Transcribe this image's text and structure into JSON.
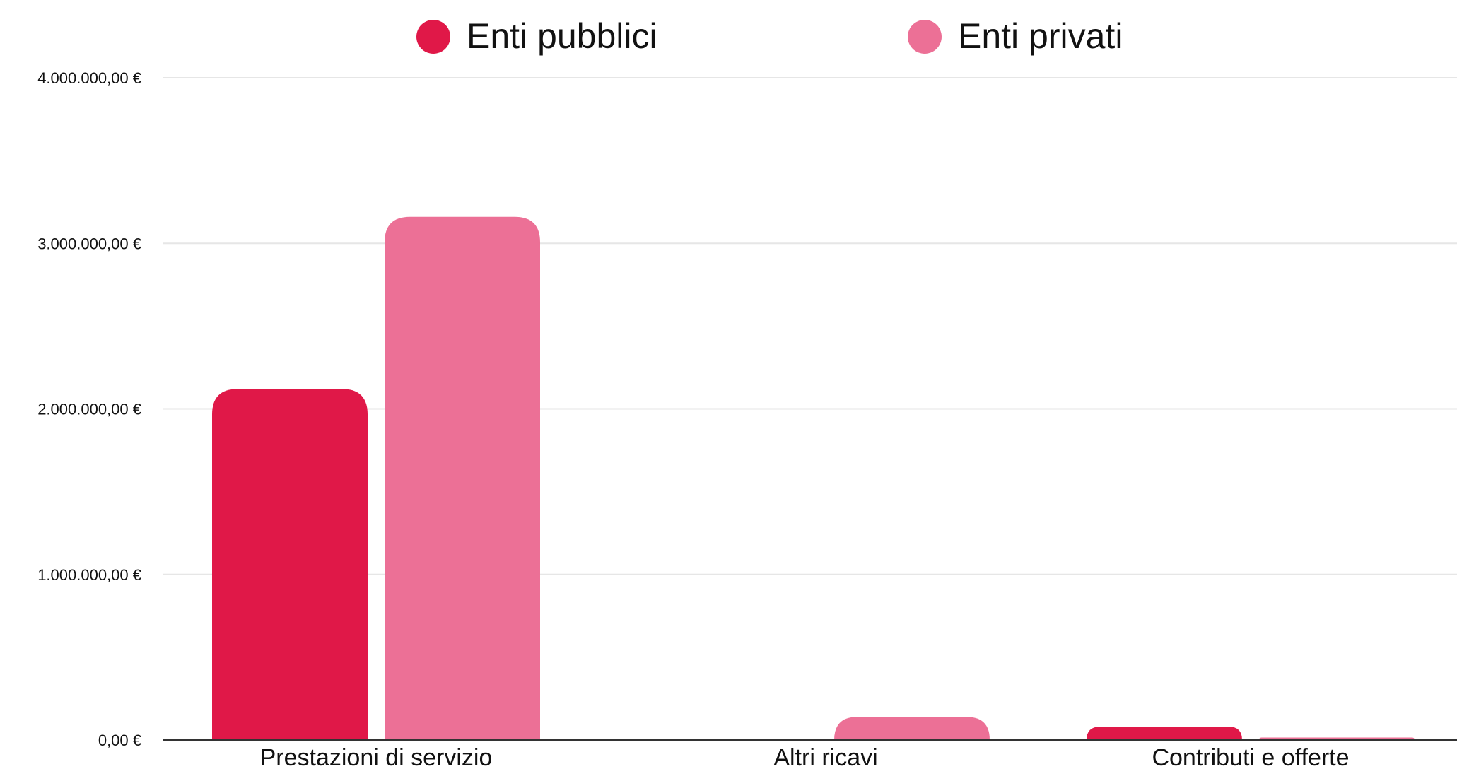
{
  "chart_data": {
    "type": "bar",
    "categories": [
      "Prestazioni di servizio",
      "Altri ricavi",
      "Contributi e offerte"
    ],
    "series": [
      {
        "name": "Enti pubblici",
        "color": "#e01848",
        "values": [
          2120000,
          0,
          80000
        ]
      },
      {
        "name": "Enti privati",
        "color": "#ec7096",
        "values": [
          3160000,
          140000,
          15000
        ]
      }
    ],
    "y_ticks": [
      {
        "value": 0,
        "label": "0,00 €"
      },
      {
        "value": 1000000,
        "label": "1.000.000,00 €"
      },
      {
        "value": 2000000,
        "label": "2.000.000,00 €"
      },
      {
        "value": 3000000,
        "label": "3.000.000,00 €"
      },
      {
        "value": 4000000,
        "label": "4.000.000,00 €"
      }
    ],
    "ylim": [
      0,
      4000000
    ],
    "grid": true,
    "legend_position": "top-center"
  }
}
